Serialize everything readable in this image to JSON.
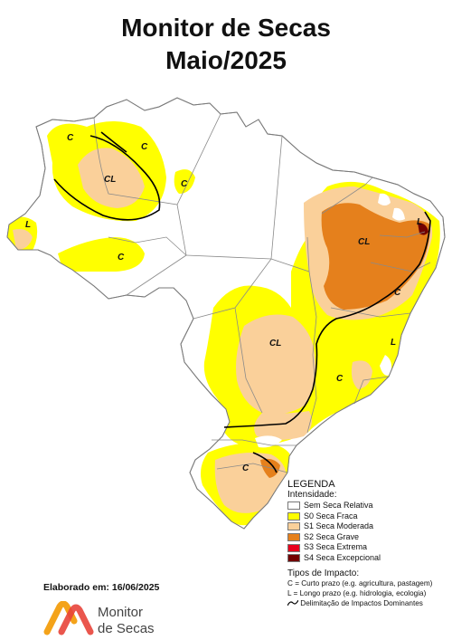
{
  "header": {
    "title_line1": "Monitor de Secas",
    "title_line2": "Maio/2025"
  },
  "map": {
    "impact_labels": [
      "C",
      "C",
      "CL",
      "C",
      "L",
      "C",
      "CL",
      "L",
      "C",
      "CL",
      "L",
      "C",
      "C"
    ],
    "colors": {
      "no_drought": "#ffffff",
      "s0": "#ffff00",
      "s1": "#fad09a",
      "s2": "#e5801c",
      "s3": "#e8001c",
      "s4": "#720000",
      "border": "#8a8a8a",
      "impact_line": "#000000"
    }
  },
  "legend": {
    "title": "LEGENDA",
    "intensity_title": "Intensidade:",
    "items": [
      {
        "label": "Sem Seca Relativa",
        "color": "#ffffff"
      },
      {
        "label": "S0 Seca Fraca",
        "color": "#ffff00"
      },
      {
        "label": "S1 Seca Moderada",
        "color": "#fad09a"
      },
      {
        "label": "S2 Seca Grave",
        "color": "#e5801c"
      },
      {
        "label": "S3 Seca Extrema",
        "color": "#e8001c"
      },
      {
        "label": "S4 Seca Excepcional",
        "color": "#720000"
      }
    ],
    "impact_title": "Tipos de Impacto:",
    "impact_items": [
      "C = Curto prazo (e.g. agricultura, pastagem)",
      "L = Longo prazo (e.g. hidrologia, ecologia)",
      "Delimitação de Impactos Dominantes"
    ]
  },
  "footer": {
    "credit": "Elaborado em: 16/06/2025",
    "logo_line1": "Monitor",
    "logo_line2": "de Secas"
  }
}
